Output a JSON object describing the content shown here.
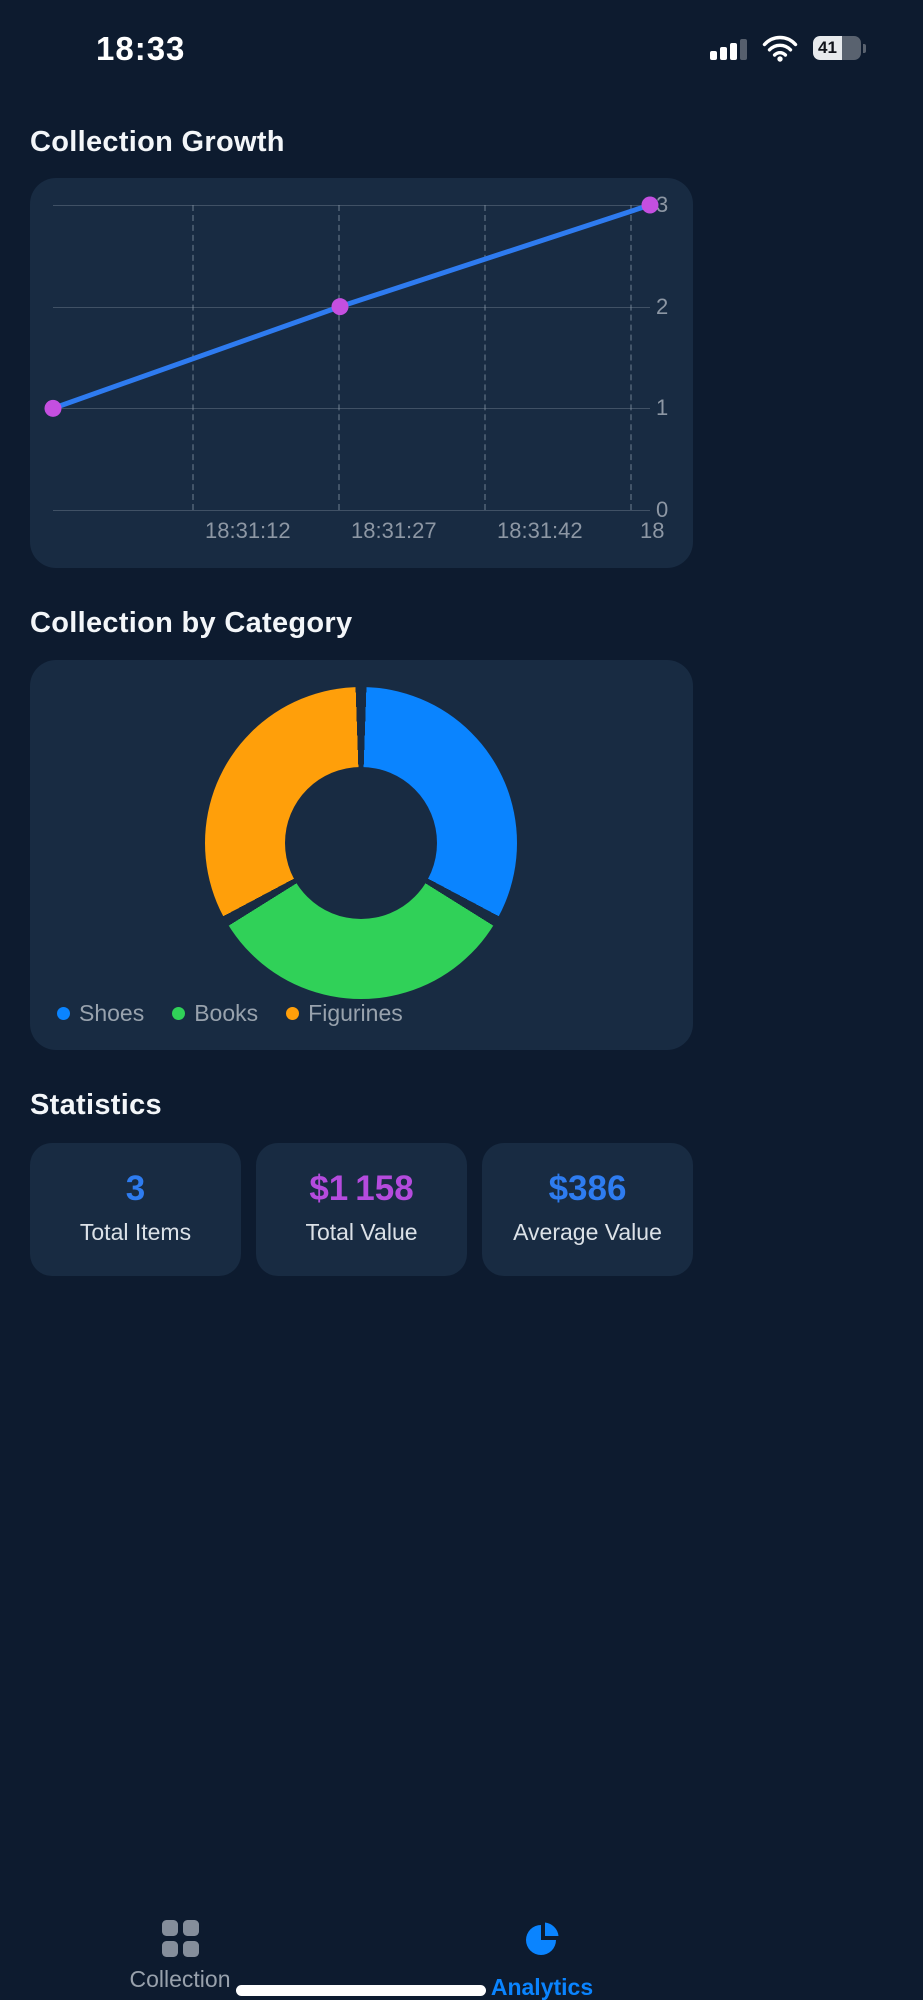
{
  "status_bar": {
    "time": "18:33",
    "battery_percent": "41"
  },
  "sections": {
    "growth": {
      "title": "Collection Growth"
    },
    "category": {
      "title": "Collection by Category"
    },
    "stats": {
      "title": "Statistics"
    }
  },
  "chart_data": [
    {
      "type": "line",
      "title": "Collection Growth",
      "x": [
        "18:30:58",
        "18:31:27",
        "18:31:59"
      ],
      "values": [
        1,
        2,
        3
      ],
      "x_tick_labels": [
        "18:31:12",
        "18:31:27",
        "18:31:42",
        "18"
      ],
      "y_tick_labels": [
        "3",
        "2",
        "1",
        "0"
      ],
      "ylim": [
        0,
        3
      ],
      "grid": true,
      "y_axis_position": "right",
      "line_color": "#2e7bf0",
      "point_color": "#c44fe0"
    },
    {
      "type": "pie",
      "subtype": "donut",
      "title": "Collection by Category",
      "labels": [
        "Shoes",
        "Books",
        "Figurines"
      ],
      "values": [
        1,
        1,
        1
      ],
      "colors": [
        "#0a84ff",
        "#30d158",
        "#ff9f0a"
      ],
      "legend_position": "bottom-left"
    }
  ],
  "legend": [
    {
      "label": "Shoes",
      "color": "#0a84ff"
    },
    {
      "label": "Books",
      "color": "#30d158"
    },
    {
      "label": "Figurines",
      "color": "#ff9f0a"
    }
  ],
  "stat_cards": [
    {
      "value": "3",
      "label": "Total Items",
      "color": "#2e7cf0"
    },
    {
      "value": "$1 158",
      "label": "Total Value",
      "color": "#b44bdd"
    },
    {
      "value": "$386",
      "label": "Average Value",
      "color": "#2e7cf0"
    }
  ],
  "tab_bar": {
    "items": [
      {
        "label": "Collection",
        "active": false
      },
      {
        "label": "Analytics",
        "active": true
      }
    ]
  },
  "icons": {
    "status": [
      "cellular-signal-icon",
      "wifi-icon",
      "battery-icon"
    ],
    "tabs": [
      "grid-icon",
      "pie-chart-icon"
    ]
  },
  "colors": {
    "background": "#0d1b2f",
    "card": "#182b42",
    "accent_blue": "#0a84ff",
    "value_blue": "#2e7cf0",
    "value_purple": "#b44bdd",
    "green": "#30d158",
    "orange": "#ff9f0a",
    "muted_text": "#97a1ac"
  }
}
